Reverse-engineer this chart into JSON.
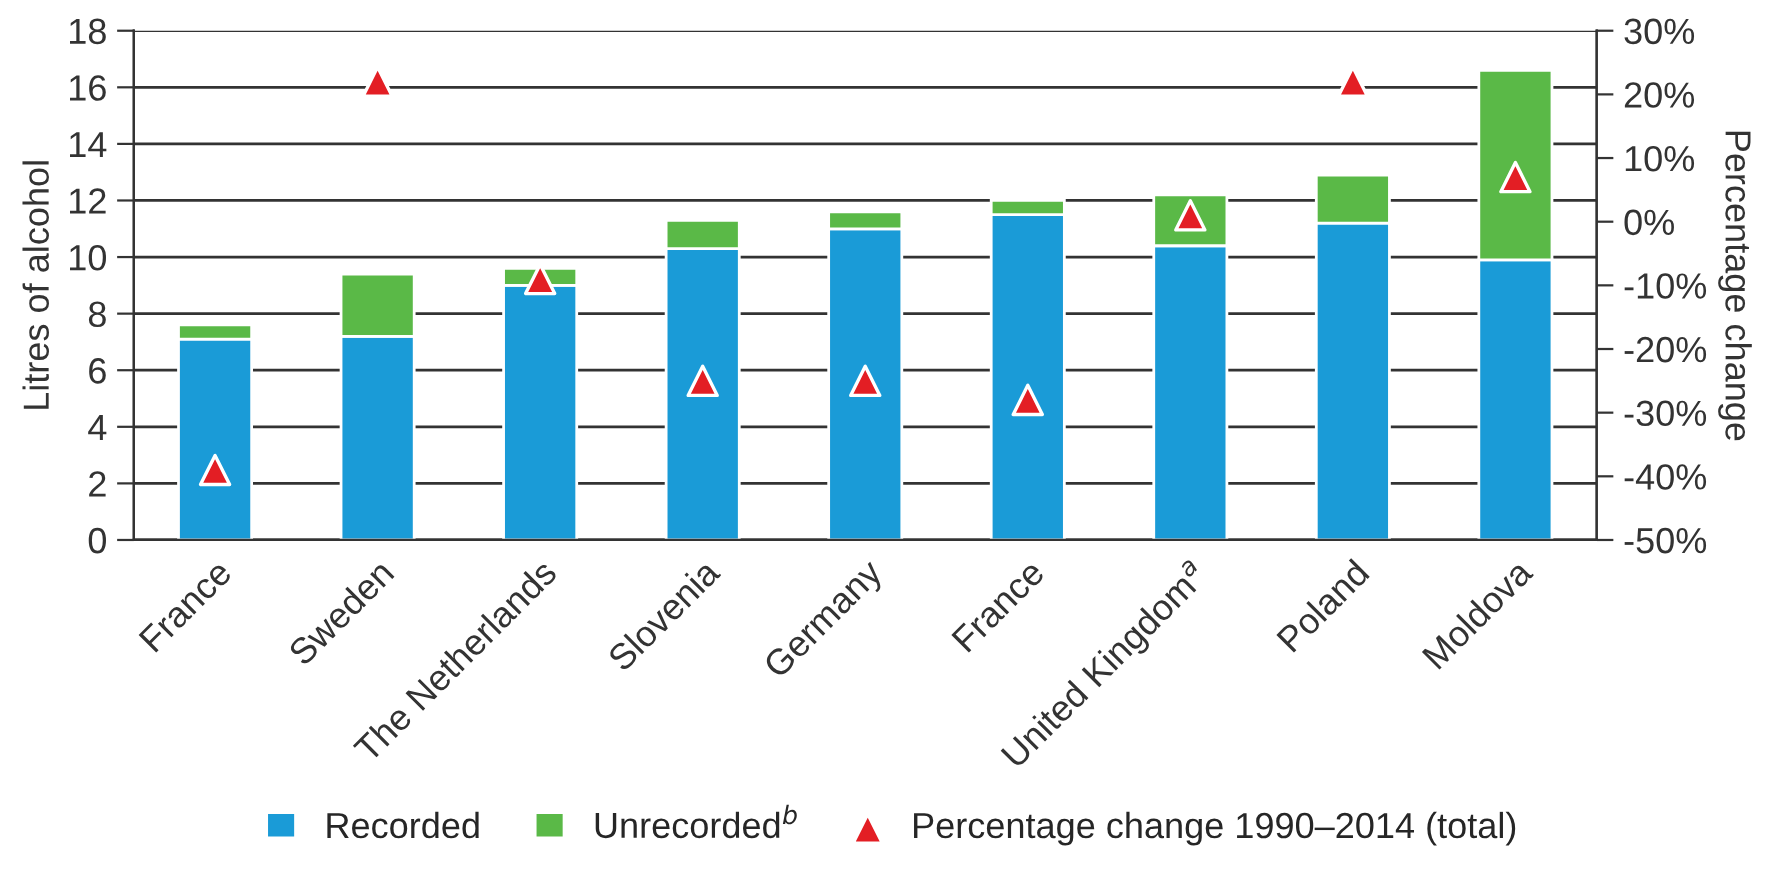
{
  "chart_data": {
    "type": "bar",
    "stacked": true,
    "xlabel": null,
    "categories": [
      "France",
      "Sweden",
      "The Netherlands",
      "Slovenia",
      "Germany",
      "France",
      "United Kingdom$^{a}$",
      "Poland",
      "Moldova"
    ],
    "ylabel": "Litres of alcohol",
    "y2label": "Percentage change",
    "series": [
      {
        "name": "Recorded",
        "color": "#1a9bd7",
        "values": [
          7.1,
          7.2,
          9.0,
          10.3,
          11.0,
          11.5,
          10.4,
          11.2,
          9.9
        ]
      },
      {
        "name": "Unrecorded$^{b}$",
        "color": "#5ab947",
        "values": [
          0.5,
          2.2,
          0.6,
          1.0,
          0.6,
          0.5,
          1.8,
          1.7,
          6.7
        ]
      },
      {
        "name": "Percentage change 1990–2014 (total)",
        "type": "scatter",
        "axis": "y2",
        "marker": "triangle",
        "color": "#e31e24",
        "values": [
          -39,
          22,
          -9,
          -25,
          -25,
          -28,
          1,
          22,
          7
        ]
      }
    ],
    "ylim": [
      0,
      18
    ],
    "yticks": [
      0,
      2,
      4,
      6,
      8,
      10,
      12,
      14,
      16,
      18
    ],
    "y2lim": [
      -50,
      30
    ],
    "y2ticks": [
      {
        "value": -50,
        "label": "-50%"
      },
      {
        "value": -40,
        "label": "-40%"
      },
      {
        "value": -30,
        "label": "-30%"
      },
      {
        "value": -20,
        "label": "-20%"
      },
      {
        "value": -10,
        "label": "-10%"
      },
      {
        "value": 0,
        "label": "0%"
      },
      {
        "value": 10,
        "label": "10%"
      },
      {
        "value": 20,
        "label": "20%"
      },
      {
        "value": 30,
        "label": "30%"
      }
    ],
    "grid": "y",
    "legend": "bottom"
  }
}
